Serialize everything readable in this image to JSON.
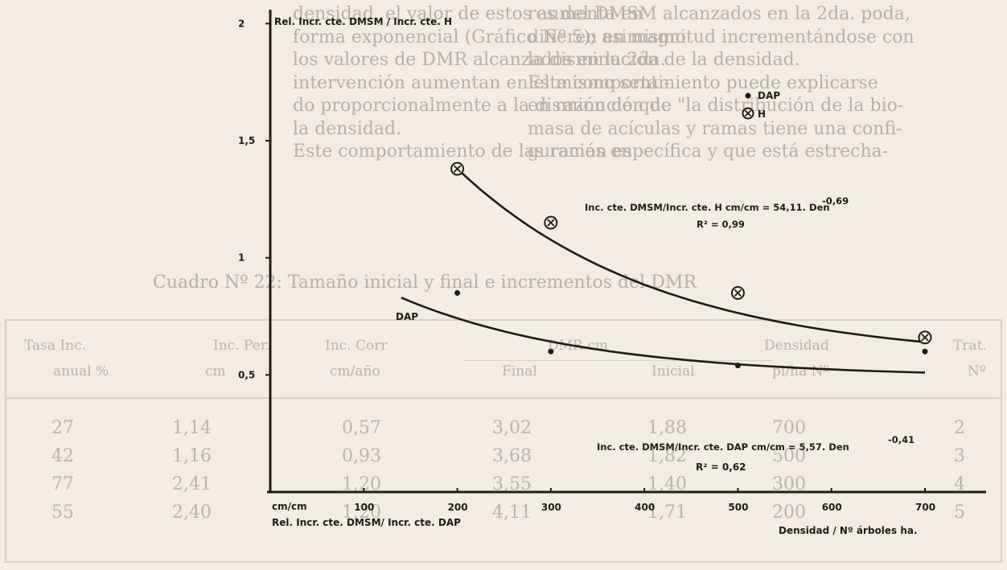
{
  "background_text": {
    "col_left": [
      "res del DMSM alcanzados en la 2da. poda,",
      "difieren en magnitud incrementándose con",
      "la disminución de la densidad.",
      "Este comportamiento puede explicarse",
      "en razón de que \"la distribución de la bio-",
      "masa de acículas y ramas tiene una confi-",
      "guración específica y que está estrecha-"
    ],
    "col_right": [
      "densidad, el valor de estos aumenta en",
      "forma exponencial (Gráfico Nº 5); asimismo",
      "los valores de DMR alcanzados en la 2da.",
      "intervención aumentan en el mismo senti-",
      "do proporcionalmente a la disminución de",
      "la densidad.",
      "Este comportamiento de las ramas en"
    ]
  },
  "table": {
    "caption": "Cuadro Nº 22: Tamaño inicial y final e incrementos del DMR",
    "headers_top": [
      "Trat.",
      "Densidad",
      "DMR cm",
      "Inc. Corr",
      "Inc. Per.",
      "Tasa Inc."
    ],
    "headers_bottom": [
      "Nº",
      "pl/ha Nº",
      "Inicial",
      "Final",
      "cm/año",
      "cm",
      "anual %"
    ],
    "rows": [
      [
        "2",
        "700",
        "1,88",
        "3,02",
        "0,57",
        "1,14",
        "27"
      ],
      [
        "3",
        "500",
        "1,82",
        "3,68",
        "0,93",
        "1,16",
        "42"
      ],
      [
        "4",
        "300",
        "1,40",
        "3,55",
        "1,20",
        "2,41",
        "77"
      ],
      [
        "5",
        "200",
        "1,71",
        "4,11",
        "1,20",
        "2,40",
        "55"
      ]
    ]
  },
  "chart_data": {
    "type": "scatter",
    "ylabel": "Rel. Incr. cte. DMSM / Incr. cte. H",
    "ylabel_bottom": "Rel. Incr. cte. DMSM/ Incr. cte. DAP",
    "xlabel": "Densidad / Nº árboles ha.",
    "x_unit": "cm/cm",
    "xlim": [
      0,
      700
    ],
    "ylim": [
      0,
      2
    ],
    "x_ticks": [
      100,
      200,
      300,
      400,
      500,
      600,
      700
    ],
    "x_tick_labels": [
      "100",
      "200",
      "300",
      "400",
      "500",
      "600",
      "700"
    ],
    "y_ticks": [
      2,
      1.5,
      1,
      0.5
    ],
    "y_tick_labels": [
      "2",
      "1,5",
      "1",
      "0,5"
    ],
    "legend": [
      {
        "symbol": "dot",
        "label": "DAP"
      },
      {
        "symbol": "circled-x",
        "label": "H"
      }
    ],
    "series": [
      {
        "name": "H",
        "marker": "circled-x",
        "x": [
          200,
          300,
          500,
          700
        ],
        "y": [
          1.38,
          1.15,
          0.85,
          0.66
        ]
      },
      {
        "name": "DAP",
        "marker": "dot",
        "x": [
          200,
          300,
          500,
          700
        ],
        "y": [
          0.85,
          0.6,
          0.54,
          0.6
        ]
      }
    ],
    "fits": [
      {
        "series": "H",
        "equation": "Inc. cte. DMSM/Incr. cte. H cm/cm = 54,11. Den",
        "exponent": "-0,69",
        "r2": "R² = 0,99",
        "coef": 54.11,
        "power": -0.69,
        "x_range": [
          200,
          700
        ]
      },
      {
        "series": "DAP",
        "label": "DAP",
        "equation": "Inc. cte. DMSM/Incr. cte. DAP cm/cm = 5,57. Den",
        "exponent": "-0,41",
        "r2": "R² = 0,62",
        "coef": 5.57,
        "power": -0.41,
        "x_range": [
          140,
          700
        ]
      }
    ]
  }
}
